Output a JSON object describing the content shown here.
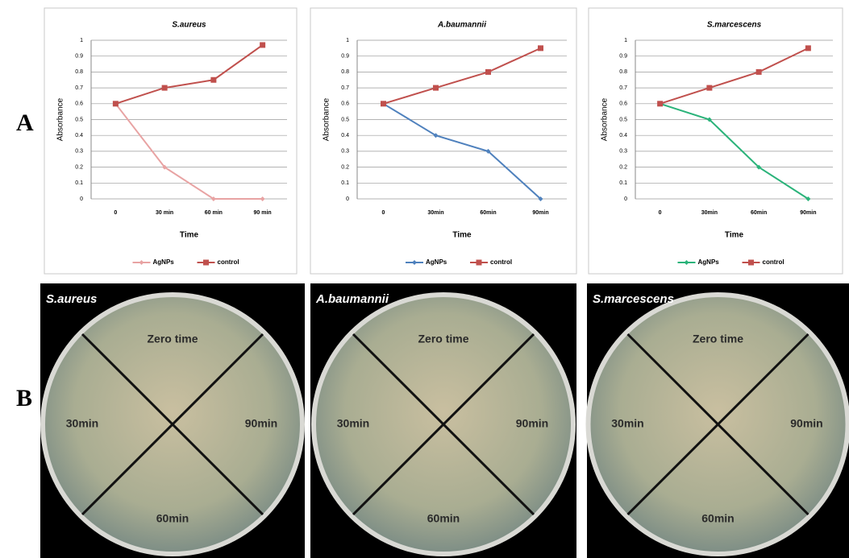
{
  "panel_labels": [
    "A",
    "B"
  ],
  "chart_data": [
    {
      "type": "line",
      "title": "S.aureus",
      "y_label": "Absorbance",
      "x_label": "Time",
      "categories": [
        "0",
        "30 min",
        "60 min",
        "90 min"
      ],
      "series": [
        {
          "name": "AgNPs",
          "color": "#e8a3a3",
          "values": [
            0.6,
            0.2,
            0,
            0
          ]
        },
        {
          "name": "control",
          "color": "#c0504d",
          "values": [
            0.6,
            0.7,
            0.75,
            0.97
          ]
        }
      ],
      "ylim": [
        0,
        1
      ],
      "yticks": [
        0,
        0.1,
        0.2,
        0.3,
        0.4,
        0.5,
        0.6,
        0.7,
        0.8,
        0.9,
        1
      ],
      "grid": true
    },
    {
      "type": "line",
      "title": "A.baumannii",
      "y_label": "Absorbance",
      "x_label": "Time",
      "categories": [
        "0",
        "30min",
        "60min",
        "90min"
      ],
      "series": [
        {
          "name": "AgNPs",
          "color": "#4f81bd",
          "values": [
            0.6,
            0.4,
            0.3,
            0
          ]
        },
        {
          "name": "control",
          "color": "#c0504d",
          "values": [
            0.6,
            0.7,
            0.8,
            0.95
          ]
        }
      ],
      "ylim": [
        0,
        1
      ],
      "yticks": [
        0,
        0.1,
        0.2,
        0.3,
        0.4,
        0.5,
        0.6,
        0.7,
        0.8,
        0.9,
        1
      ],
      "grid": true
    },
    {
      "type": "line",
      "title": "S.marcescens",
      "y_label": "Absorbance",
      "x_label": "Time",
      "categories": [
        "0",
        "30min",
        "60min",
        "90min"
      ],
      "series": [
        {
          "name": "AgNPs",
          "color": "#2bb37a",
          "values": [
            0.6,
            0.5,
            0.2,
            0
          ]
        },
        {
          "name": "control",
          "color": "#c0504d",
          "values": [
            0.6,
            0.7,
            0.8,
            0.95
          ]
        }
      ],
      "ylim": [
        0,
        1
      ],
      "yticks": [
        0,
        0.1,
        0.2,
        0.3,
        0.4,
        0.5,
        0.6,
        0.7,
        0.8,
        0.9,
        1
      ],
      "grid": true
    }
  ],
  "photos": [
    {
      "title": "S.aureus",
      "quadrants": [
        "Zero time",
        "30min",
        "90min",
        "60min"
      ]
    },
    {
      "title": "A.baumannii",
      "quadrants": [
        "Zero time",
        "30min",
        "90min",
        "60min"
      ]
    },
    {
      "title": "S.marcescens",
      "quadrants": [
        "Zero time",
        "30min",
        "90min",
        "60min"
      ]
    }
  ]
}
